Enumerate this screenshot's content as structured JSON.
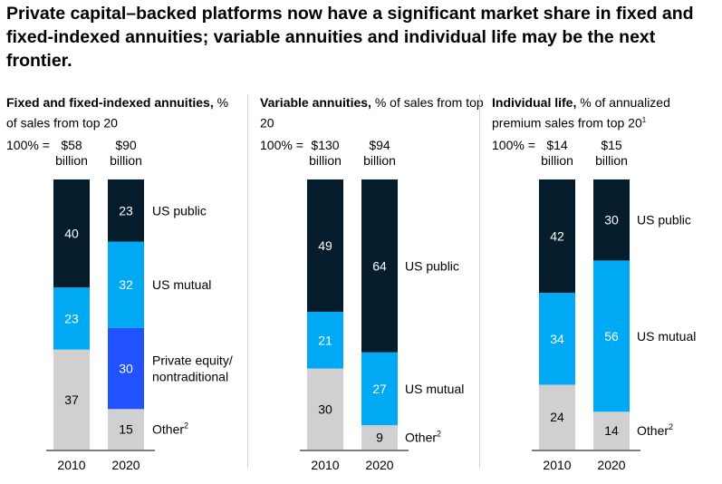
{
  "headline": "Private capital–backed platforms now have a significant market share in fixed and fixed-indexed annuities; variable annuities and individual life may be the next frontier.",
  "total_prefix": "100% =",
  "colors": {
    "US public": "#051c2c",
    "US mutual": "#00a9f4",
    "Private equity/nontraditional": "#2251ff",
    "Other": "#d0d0d0"
  },
  "chart_data": [
    {
      "type": "bar",
      "stacked": true,
      "title_bold": "Fixed and fixed-indexed annuities,",
      "title_rest": " % of sales from top 20",
      "title_sup": "",
      "categories": [
        "2010",
        "2020"
      ],
      "totals": [
        [
          "$58",
          "billion"
        ],
        [
          "$90",
          "billion"
        ]
      ],
      "ylim": [
        0,
        100
      ],
      "series": [
        {
          "name": "Other",
          "sup": "2",
          "values": [
            37,
            15
          ]
        },
        {
          "name": "Private equity/nontraditional",
          "label_lines": [
            "Private equity/",
            "nontraditional"
          ],
          "values": [
            0,
            30
          ]
        },
        {
          "name": "US mutual",
          "values": [
            23,
            32
          ]
        },
        {
          "name": "US public",
          "values": [
            40,
            23
          ]
        }
      ]
    },
    {
      "type": "bar",
      "stacked": true,
      "title_bold": "Variable annuities,",
      "title_rest": " % of sales from top 20",
      "title_sup": "",
      "categories": [
        "2010",
        "2020"
      ],
      "totals": [
        [
          "$130",
          "billion"
        ],
        [
          "$94",
          "billion"
        ]
      ],
      "ylim": [
        0,
        100
      ],
      "series": [
        {
          "name": "Other",
          "sup": "2",
          "values": [
            30,
            9
          ]
        },
        {
          "name": "US mutual",
          "values": [
            21,
            27
          ]
        },
        {
          "name": "US public",
          "values": [
            49,
            64
          ]
        }
      ]
    },
    {
      "type": "bar",
      "stacked": true,
      "title_bold": "Individual life,",
      "title_rest": " % of annualized premium sales from top 20",
      "title_sup": "1",
      "categories": [
        "2010",
        "2020"
      ],
      "totals": [
        [
          "$14",
          "billion"
        ],
        [
          "$15",
          "billion"
        ]
      ],
      "ylim": [
        0,
        100
      ],
      "series": [
        {
          "name": "Other",
          "sup": "2",
          "values": [
            24,
            14
          ]
        },
        {
          "name": "US mutual",
          "values": [
            34,
            56
          ]
        },
        {
          "name": "US public",
          "values": [
            42,
            30
          ]
        }
      ]
    }
  ]
}
